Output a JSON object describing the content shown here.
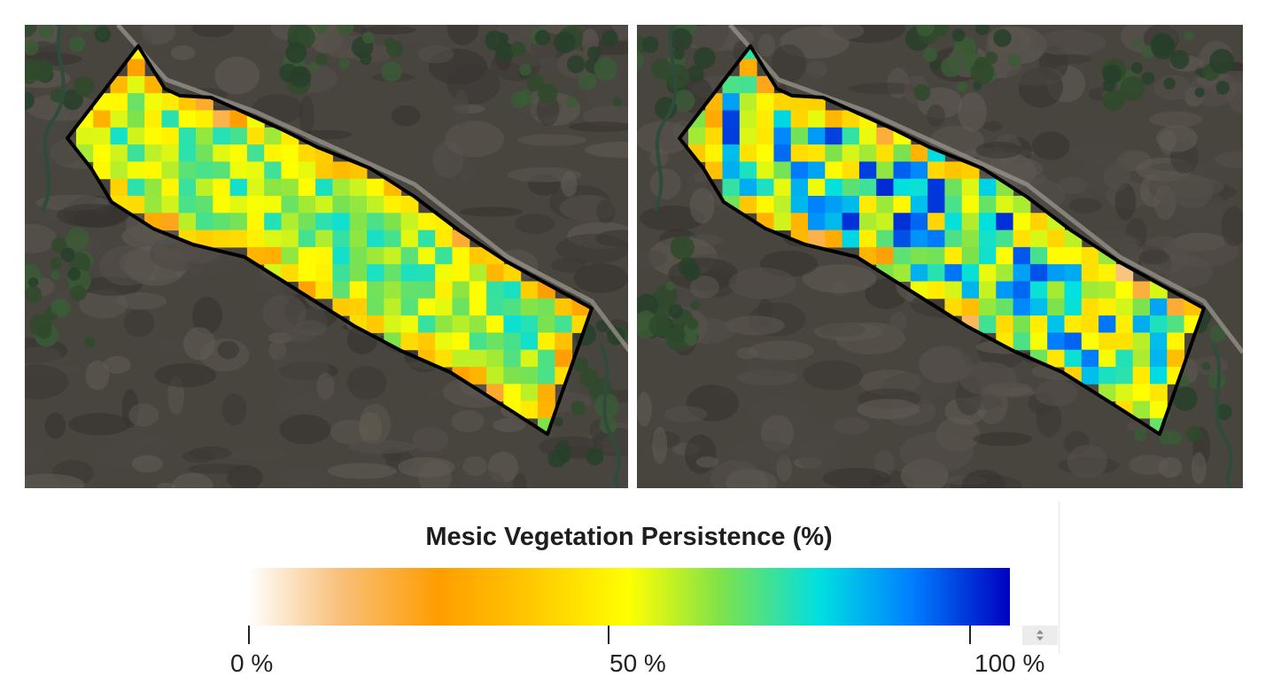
{
  "legend": {
    "title": "Mesic Vegetation Persistence (%)",
    "ticks": [
      "0 %",
      "50 %",
      "100 %"
    ],
    "range": [
      0,
      100
    ],
    "color_stops": [
      {
        "value": 0,
        "color": "#ffffff"
      },
      {
        "value": 12,
        "color": "#f8c07a"
      },
      {
        "value": 25,
        "color": "#ff9d00"
      },
      {
        "value": 37,
        "color": "#ffc800"
      },
      {
        "value": 50,
        "color": "#ffff00"
      },
      {
        "value": 62,
        "color": "#7fe24a"
      },
      {
        "value": 75,
        "color": "#00e0e0"
      },
      {
        "value": 87,
        "color": "#0080ff"
      },
      {
        "value": 100,
        "color": "#0000c0"
      }
    ]
  },
  "maps": [
    {
      "name": "left",
      "dominant_persistence_pct": 60
    },
    {
      "name": "right",
      "dominant_persistence_pct": 68
    }
  ]
}
